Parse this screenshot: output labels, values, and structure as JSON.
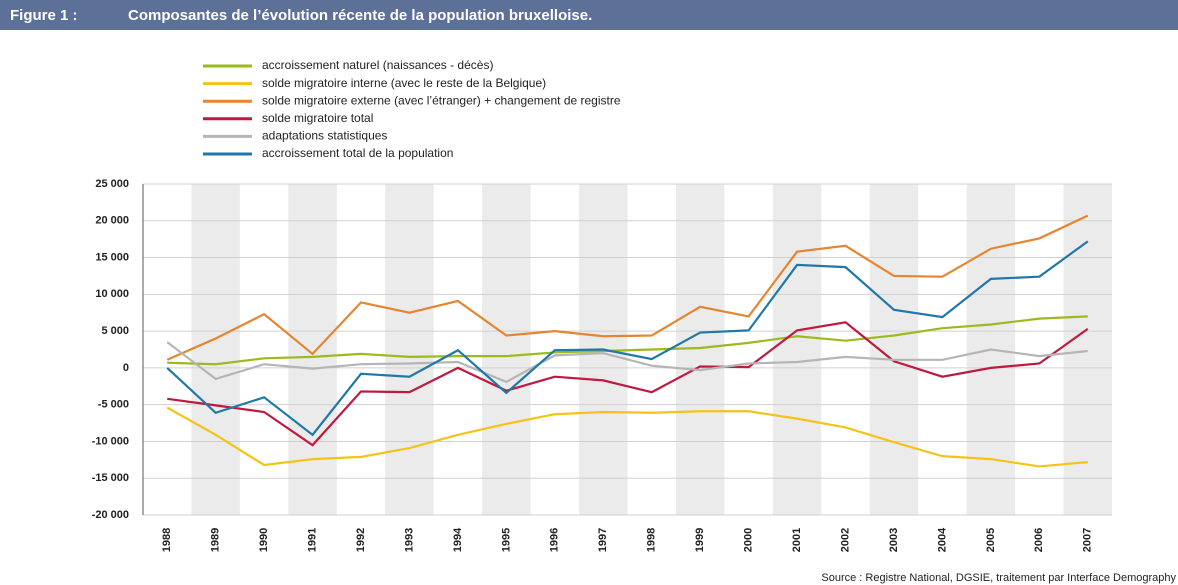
{
  "header": {
    "label": "Figure 1 :",
    "title": "Composantes de l’évolution récente de la population bruxelloise."
  },
  "chart_data": {
    "type": "line",
    "categories": [
      "1988",
      "1989",
      "1990",
      "1991",
      "1992",
      "1993",
      "1994",
      "1995",
      "1996",
      "1997",
      "1998",
      "1999",
      "2000",
      "2001",
      "2002",
      "2003",
      "2004",
      "2005",
      "2006",
      "2007"
    ],
    "series": [
      {
        "name": "accroissement naturel (naissances - décès)",
        "color": "#9bbb1c",
        "values": [
          700,
          500,
          1300,
          1500,
          1900,
          1500,
          1600,
          1600,
          2100,
          2300,
          2500,
          2700,
          3400,
          4300,
          3700,
          4400,
          5400,
          5900,
          6700,
          7000
        ]
      },
      {
        "name": "solde migratoire interne (avec le reste de la Belgique)",
        "color": "#f5c217",
        "values": [
          -5400,
          -9100,
          -13200,
          -12400,
          -12100,
          -10900,
          -9100,
          -7600,
          -6300,
          -6000,
          -6100,
          -5900,
          -5900,
          -6900,
          -8100,
          -10100,
          -12000,
          -12400,
          -13400,
          -12800
        ]
      },
      {
        "name": "solde migratoire externe (avec l’étranger) + changement de registre",
        "color": "#e5852f",
        "values": [
          1100,
          4000,
          7300,
          1900,
          8900,
          7500,
          9100,
          4400,
          5000,
          4300,
          4400,
          8300,
          7000,
          15800,
          16600,
          12500,
          12400,
          16200,
          17600,
          20700
        ]
      },
      {
        "name": "solde migratoire total",
        "color": "#c0183f",
        "values": [
          -4200,
          -5100,
          -6000,
          -10500,
          -3200,
          -3300,
          0,
          -3100,
          -1200,
          -1700,
          -3300,
          200,
          100,
          5100,
          6200,
          900,
          -1200,
          0,
          600,
          5300
        ]
      },
      {
        "name": "adaptations statistiques",
        "color": "#b5b5b5",
        "values": [
          3500,
          -1500,
          500,
          -100,
          500,
          600,
          800,
          -1900,
          1700,
          2000,
          300,
          -300,
          600,
          800,
          1500,
          1100,
          1100,
          2500,
          1600,
          2300
        ]
      },
      {
        "name": "accroissement total de la population",
        "color": "#1f78a8",
        "values": [
          0,
          -6100,
          -4000,
          -9100,
          -800,
          -1200,
          2400,
          -3400,
          2400,
          2500,
          1200,
          4800,
          5100,
          14000,
          13700,
          7900,
          6900,
          12100,
          12400,
          17200
        ]
      }
    ],
    "ylim": [
      -20000,
      25000
    ],
    "yticks": [
      {
        "value": -20000,
        "label": "-20 000"
      },
      {
        "value": -15000,
        "label": "-15 000"
      },
      {
        "value": -10000,
        "label": "-10 000"
      },
      {
        "value": -5000,
        "label": "-5 000"
      },
      0,
      {
        "value": 5000,
        "label": "5 000"
      },
      {
        "value": 10000,
        "label": "10 000"
      },
      {
        "value": 15000,
        "label": "15 000"
      },
      {
        "value": 20000,
        "label": "20 000"
      },
      {
        "value": 25000,
        "label": "25 000"
      }
    ],
    "grid": true,
    "source": "Source : Registre National, DGSIE, traitement par Interface Demography"
  }
}
